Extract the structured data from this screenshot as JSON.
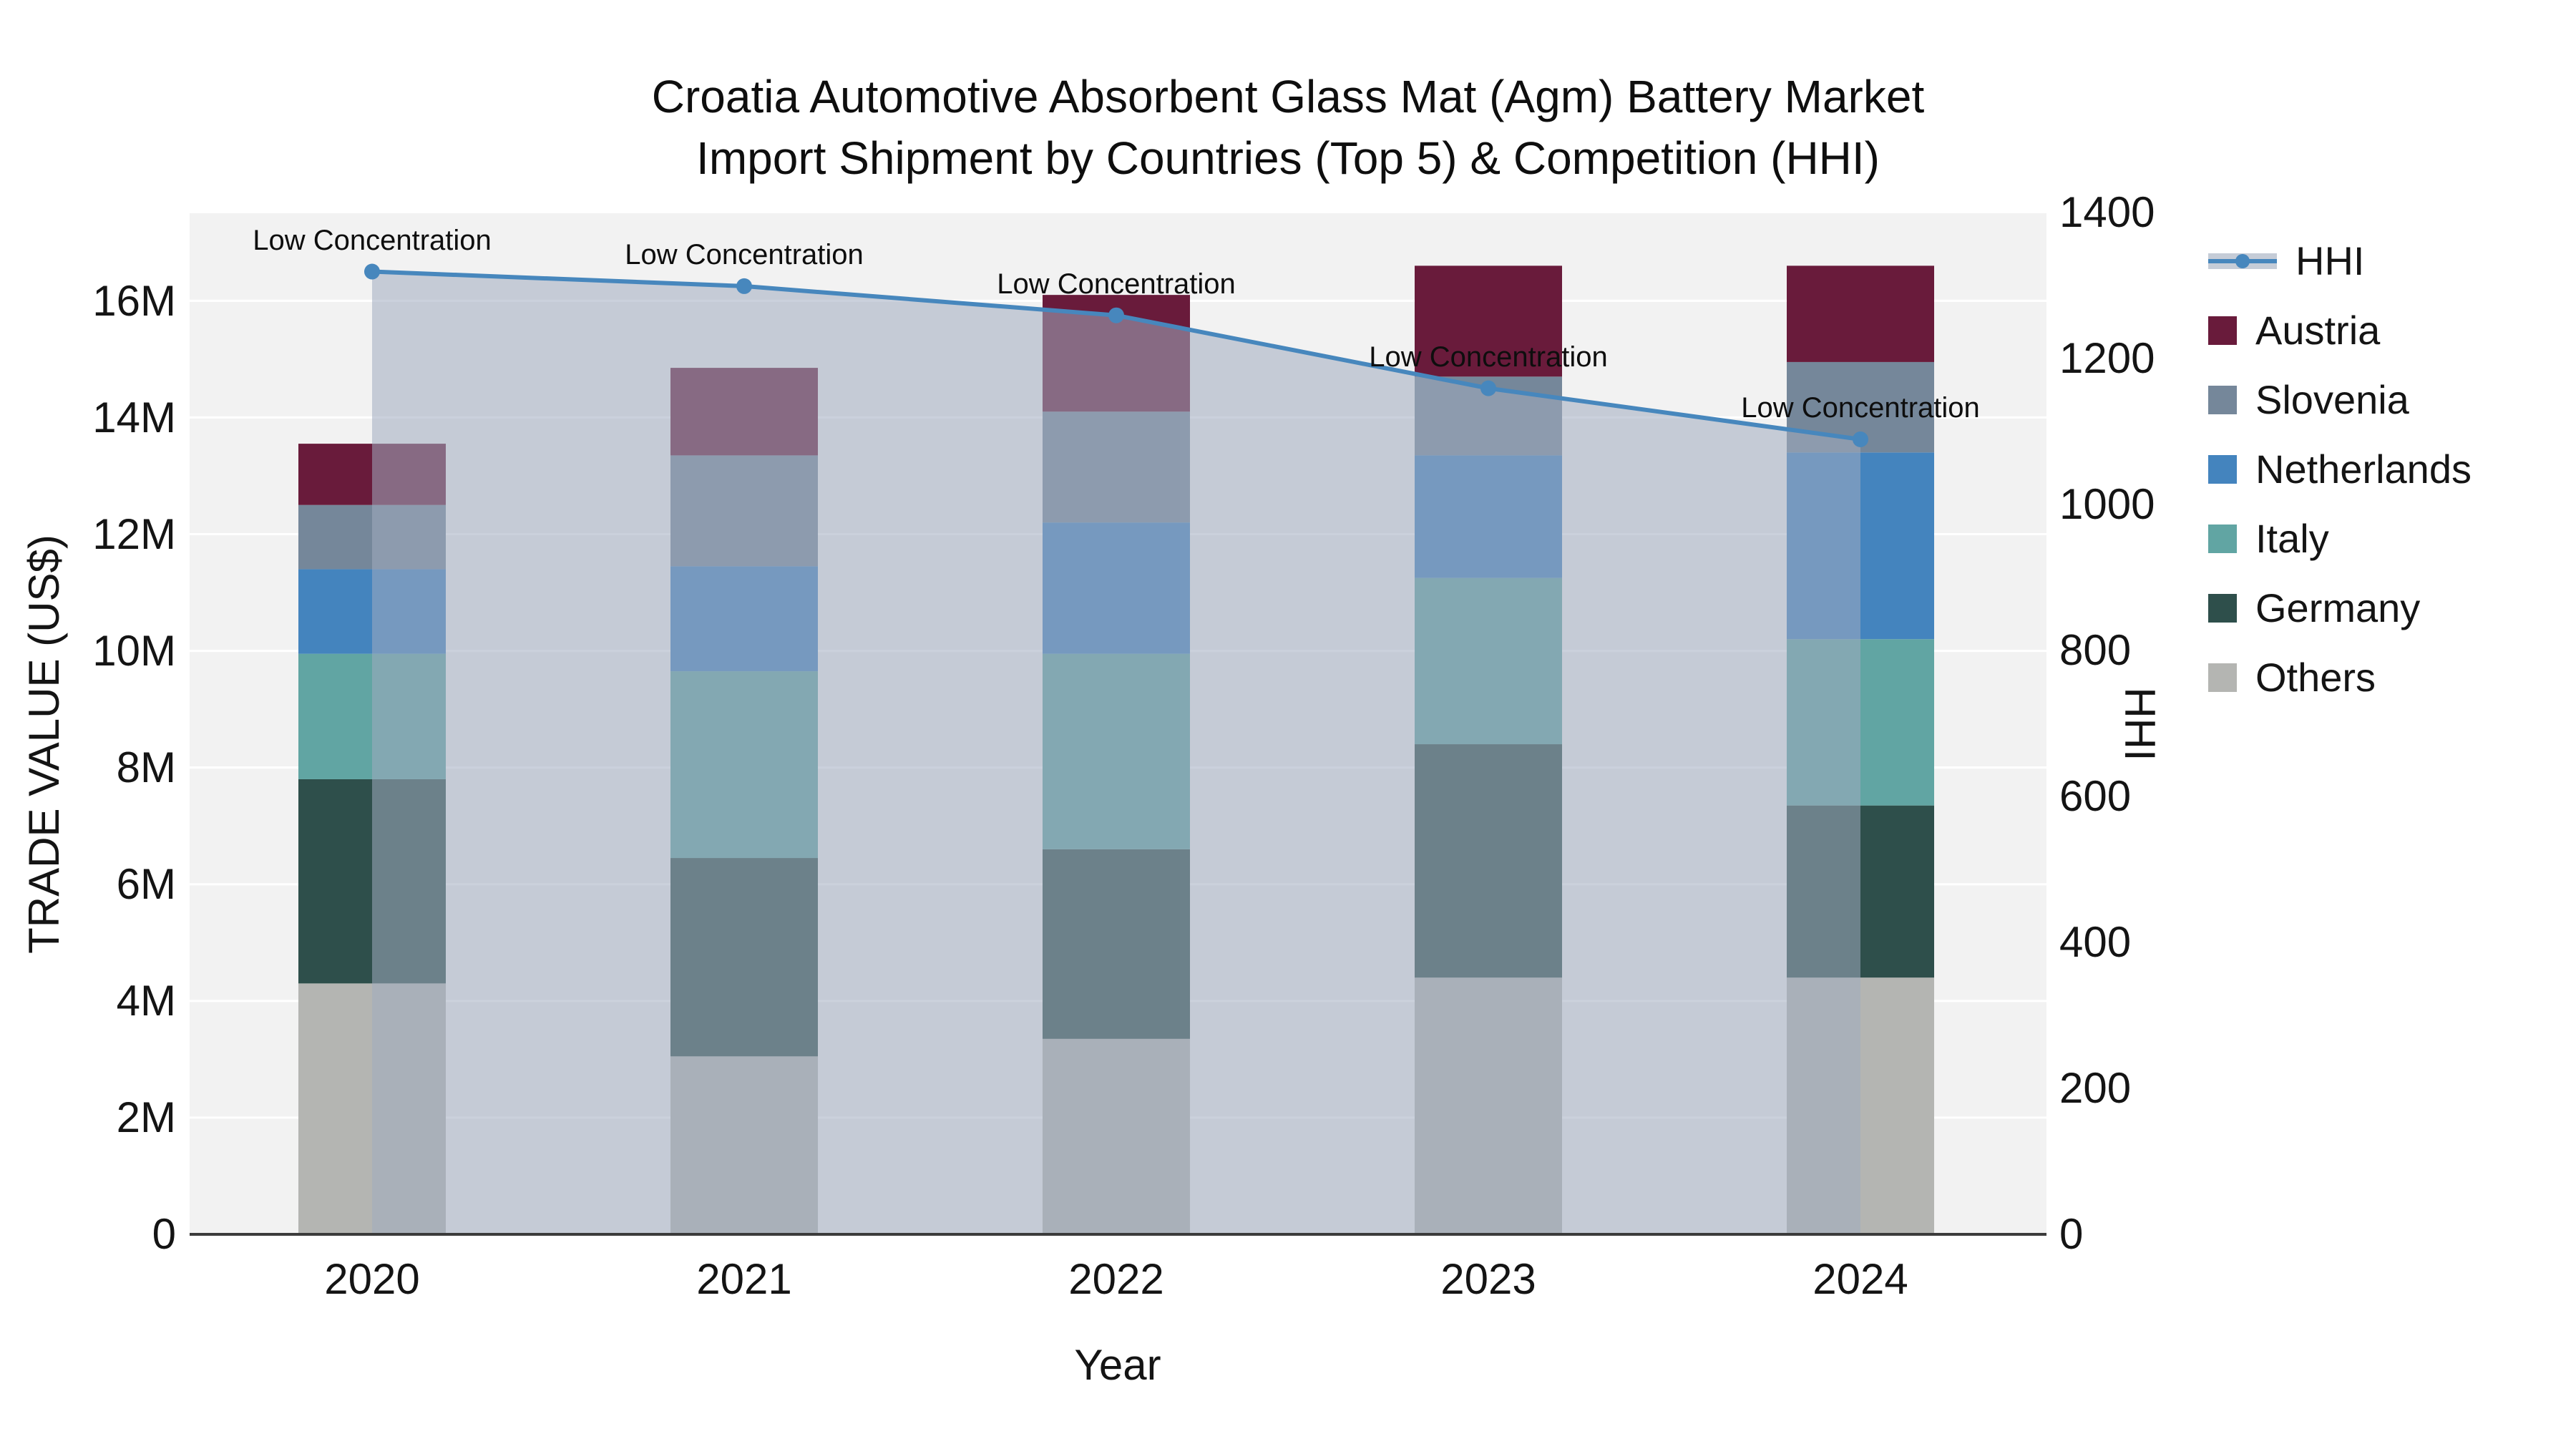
{
  "title": {
    "line1": "Croatia Automotive Absorbent Glass Mat (Agm) Battery Market",
    "line2": "Import Shipment by Countries (Top 5) & Competition (HHI)"
  },
  "axes": {
    "y_left": {
      "title": "TRADE VALUE (US$)",
      "ticks": [
        "0",
        "2M",
        "4M",
        "6M",
        "8M",
        "10M",
        "12M",
        "14M",
        "16M"
      ]
    },
    "y_right": {
      "title": "HHI",
      "ticks": [
        "0",
        "200",
        "400",
        "600",
        "800",
        "1000",
        "1200",
        "1400"
      ]
    },
    "x": {
      "title": "Year",
      "ticks": [
        "2020",
        "2021",
        "2022",
        "2023",
        "2024"
      ]
    }
  },
  "annotations": [
    {
      "text": "Low Concentration"
    },
    {
      "text": "Low Concentration"
    },
    {
      "text": "Low Concentration"
    },
    {
      "text": "Low Concentration"
    },
    {
      "text": "Low Concentration"
    }
  ],
  "legend": {
    "items": [
      {
        "label": "HHI",
        "marker": "line-dot-band",
        "color": "#4787BD",
        "band_color": "#C5CCD7"
      },
      {
        "label": "Austria",
        "marker": "square",
        "color": "#691B3B"
      },
      {
        "label": "Slovenia",
        "marker": "square",
        "color": "#75879A"
      },
      {
        "label": "Netherlands",
        "marker": "square",
        "color": "#4484BE"
      },
      {
        "label": "Italy",
        "marker": "square",
        "color": "#61A5A3"
      },
      {
        "label": "Germany",
        "marker": "square",
        "color": "#2E4F4B"
      },
      {
        "label": "Others",
        "marker": "square",
        "color": "#B4B5B2"
      }
    ]
  },
  "chart_data": {
    "type": "combo_stacked_bar_line",
    "title": "Croatia Automotive Absorbent Glass Mat (Agm) Battery Market Import Shipment by Countries (Top 5) & Competition (HHI)",
    "x_categories": [
      "2020",
      "2021",
      "2022",
      "2023",
      "2024"
    ],
    "xlabel": "Year",
    "ylabel_left": "TRADE VALUE (US$)",
    "ylabel_right": "HHI",
    "bar_value_unit": "million US$",
    "bar_series": [
      {
        "name": "Others",
        "color": "#B4B5B2",
        "values": [
          4.3,
          3.05,
          3.35,
          4.4,
          4.4
        ]
      },
      {
        "name": "Germany",
        "color": "#2E4F4B",
        "values": [
          3.5,
          3.4,
          3.25,
          4.0,
          2.95
        ]
      },
      {
        "name": "Italy",
        "color": "#61A5A3",
        "values": [
          2.15,
          3.2,
          3.35,
          2.85,
          2.85
        ]
      },
      {
        "name": "Netherlands",
        "color": "#4484BE",
        "values": [
          1.45,
          1.8,
          2.25,
          2.1,
          3.2
        ]
      },
      {
        "name": "Slovenia",
        "color": "#75879A",
        "values": [
          1.1,
          1.9,
          1.9,
          1.35,
          1.55
        ]
      },
      {
        "name": "Austria",
        "color": "#691B3B",
        "values": [
          1.05,
          1.5,
          2.0,
          1.9,
          1.65
        ]
      }
    ],
    "bar_totals_millions": [
      13.55,
      14.85,
      16.1,
      16.6,
      16.6
    ],
    "line_series": {
      "name": "HHI",
      "values": [
        1320,
        1300,
        1260,
        1160,
        1090
      ],
      "color": "#4787BD",
      "area_fill": "rgba(160,172,192,0.55)",
      "point_labels": [
        "Low Concentration",
        "Low Concentration",
        "Low Concentration",
        "Low Concentration",
        "Low Concentration"
      ]
    },
    "y_left_range_millions": [
      0,
      17.5
    ],
    "y_left_tick_step_millions": 2,
    "y_right_range": [
      0,
      1400
    ],
    "y_right_tick_step": 200,
    "grid": true,
    "plot_bg": "#F2F2F2",
    "grid_color": "#FFFFFF",
    "baseline_color": "#3B3B3B",
    "legend_position": "right"
  }
}
